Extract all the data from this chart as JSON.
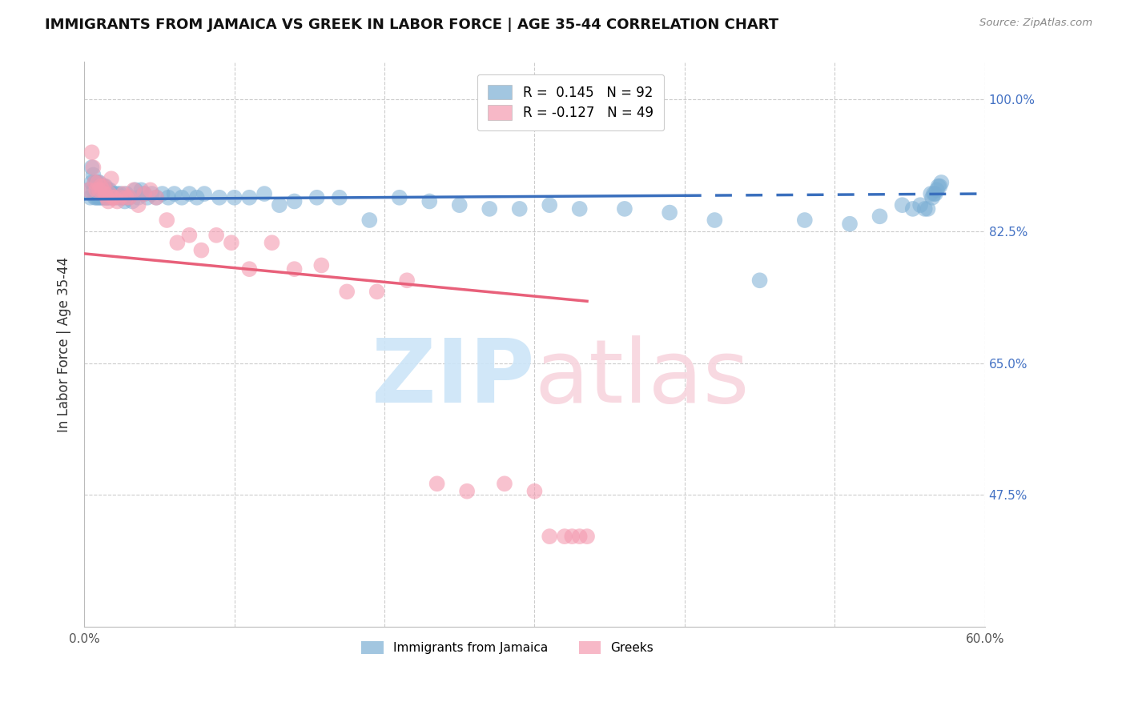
{
  "title": "IMMIGRANTS FROM JAMAICA VS GREEK IN LABOR FORCE | AGE 35-44 CORRELATION CHART",
  "source": "Source: ZipAtlas.com",
  "ylabel": "In Labor Force | Age 35-44",
  "xlim": [
    0.0,
    0.6
  ],
  "ylim": [
    0.3,
    1.05
  ],
  "xticks": [
    0.0,
    0.1,
    0.2,
    0.3,
    0.4,
    0.5,
    0.6
  ],
  "xticklabels": [
    "0.0%",
    "",
    "",
    "",
    "",
    "",
    "60.0%"
  ],
  "yticks_right": [
    0.475,
    0.65,
    0.825,
    1.0
  ],
  "yticklabels_right": [
    "47.5%",
    "65.0%",
    "82.5%",
    "100.0%"
  ],
  "jamaica_R": 0.145,
  "jamaica_N": 92,
  "greek_R": -0.127,
  "greek_N": 49,
  "jamaica_color": "#7baed4",
  "greek_color": "#f49ab0",
  "jamaica_line_color": "#3a6fbd",
  "greek_line_color": "#e8607a",
  "jamaica_x": [
    0.003,
    0.004,
    0.005,
    0.005,
    0.006,
    0.006,
    0.007,
    0.007,
    0.008,
    0.008,
    0.009,
    0.009,
    0.01,
    0.01,
    0.011,
    0.011,
    0.012,
    0.012,
    0.013,
    0.013,
    0.014,
    0.014,
    0.015,
    0.015,
    0.016,
    0.016,
    0.017,
    0.017,
    0.018,
    0.019,
    0.02,
    0.021,
    0.022,
    0.023,
    0.024,
    0.025,
    0.026,
    0.027,
    0.028,
    0.029,
    0.03,
    0.032,
    0.034,
    0.036,
    0.038,
    0.04,
    0.042,
    0.045,
    0.048,
    0.052,
    0.056,
    0.06,
    0.065,
    0.07,
    0.075,
    0.08,
    0.09,
    0.1,
    0.11,
    0.12,
    0.13,
    0.14,
    0.155,
    0.17,
    0.19,
    0.21,
    0.23,
    0.25,
    0.27,
    0.29,
    0.31,
    0.33,
    0.36,
    0.39,
    0.42,
    0.45,
    0.48,
    0.51,
    0.53,
    0.545,
    0.552,
    0.557,
    0.56,
    0.562,
    0.564,
    0.565,
    0.566,
    0.567,
    0.568,
    0.569,
    0.57,
    0.571
  ],
  "jamaica_y": [
    0.88,
    0.87,
    0.89,
    0.91,
    0.88,
    0.9,
    0.87,
    0.89,
    0.87,
    0.89,
    0.87,
    0.89,
    0.87,
    0.89,
    0.87,
    0.885,
    0.87,
    0.885,
    0.87,
    0.885,
    0.87,
    0.885,
    0.87,
    0.88,
    0.87,
    0.88,
    0.87,
    0.88,
    0.875,
    0.87,
    0.875,
    0.87,
    0.875,
    0.87,
    0.875,
    0.87,
    0.87,
    0.865,
    0.875,
    0.87,
    0.87,
    0.865,
    0.88,
    0.87,
    0.88,
    0.875,
    0.87,
    0.875,
    0.87,
    0.875,
    0.87,
    0.875,
    0.87,
    0.875,
    0.87,
    0.875,
    0.87,
    0.87,
    0.87,
    0.875,
    0.86,
    0.865,
    0.87,
    0.87,
    0.84,
    0.87,
    0.865,
    0.86,
    0.855,
    0.855,
    0.86,
    0.855,
    0.855,
    0.85,
    0.84,
    0.76,
    0.84,
    0.835,
    0.845,
    0.86,
    0.855,
    0.86,
    0.855,
    0.855,
    0.875,
    0.87,
    0.875,
    0.875,
    0.88,
    0.885,
    0.885,
    0.89
  ],
  "greek_x": [
    0.003,
    0.005,
    0.006,
    0.007,
    0.008,
    0.009,
    0.01,
    0.011,
    0.012,
    0.013,
    0.014,
    0.015,
    0.016,
    0.017,
    0.018,
    0.019,
    0.02,
    0.022,
    0.024,
    0.026,
    0.028,
    0.03,
    0.033,
    0.036,
    0.04,
    0.044,
    0.048,
    0.055,
    0.062,
    0.07,
    0.078,
    0.088,
    0.098,
    0.11,
    0.125,
    0.14,
    0.158,
    0.175,
    0.195,
    0.215,
    0.235,
    0.255,
    0.28,
    0.3,
    0.31,
    0.32,
    0.325,
    0.33,
    0.335
  ],
  "greek_y": [
    0.88,
    0.93,
    0.91,
    0.89,
    0.88,
    0.89,
    0.88,
    0.885,
    0.88,
    0.885,
    0.875,
    0.87,
    0.865,
    0.875,
    0.895,
    0.87,
    0.87,
    0.865,
    0.87,
    0.875,
    0.87,
    0.87,
    0.88,
    0.86,
    0.875,
    0.88,
    0.87,
    0.84,
    0.81,
    0.82,
    0.8,
    0.82,
    0.81,
    0.775,
    0.81,
    0.775,
    0.78,
    0.745,
    0.745,
    0.76,
    0.49,
    0.48,
    0.49,
    0.48,
    0.42,
    0.42,
    0.42,
    0.42,
    0.42
  ],
  "jam_line_x_solid_end": 0.4,
  "jam_line_x_end": 0.6
}
